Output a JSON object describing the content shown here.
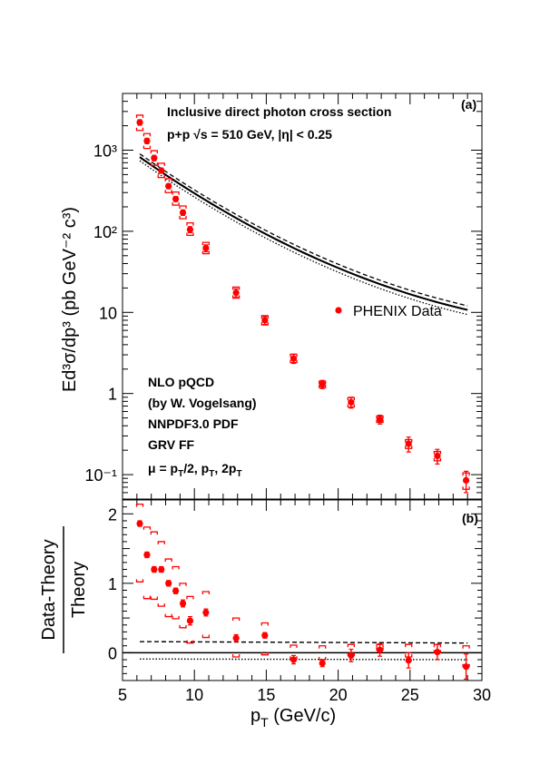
{
  "chart_data": [
    {
      "panel": "(a)",
      "type": "scatter",
      "yscale": "log",
      "xlim": [
        5,
        30
      ],
      "ylim": [
        0.05,
        5000
      ],
      "ylabel": "Ed³σ/dp³ (pb GeV⁻² c³)",
      "title": "Inclusive direct photon cross section",
      "subtitle": "p+p  √s = 510 GeV, |η| < 0.25",
      "legend": "PHENIX Data",
      "legend_position": "center-right",
      "theory_text": [
        "NLO pQCD",
        "(by W. Vogelsang)",
        "NNPDF3.0 PDF",
        "GRV FF",
        "μ = pT/2, pT, 2pT"
      ],
      "series": [
        {
          "name": "PHENIX Data",
          "marker": "circle",
          "color": "#ff0000",
          "x": [
            6.2,
            6.7,
            7.2,
            7.7,
            8.2,
            8.7,
            9.2,
            9.7,
            10.8,
            12.9,
            14.9,
            16.9,
            18.9,
            20.9,
            22.9,
            24.9,
            26.9,
            28.9
          ],
          "y": [
            2200,
            1300,
            800,
            560,
            360,
            250,
            170,
            105,
            62,
            17.5,
            8.0,
            2.7,
            1.3,
            0.78,
            0.48,
            0.24,
            0.17,
            0.085
          ],
          "yerr_low": [
            2030,
            1200,
            740,
            520,
            335,
            232,
            157,
            96,
            56,
            15.5,
            7.1,
            2.35,
            1.15,
            0.66,
            0.42,
            0.19,
            0.135,
            0.06
          ],
          "yerr_high": [
            2370,
            1400,
            860,
            600,
            385,
            268,
            183,
            114,
            68,
            19.5,
            8.9,
            3.05,
            1.45,
            0.9,
            0.54,
            0.29,
            0.205,
            0.11
          ],
          "sys_low": [
            1750,
            1050,
            650,
            460,
            300,
            210,
            143,
            89,
            53,
            15,
            7.0,
            2.4,
            1.18,
            0.68,
            0.44,
            0.21,
            0.148,
            0.066
          ],
          "sys_high": [
            2700,
            1600,
            985,
            690,
            445,
            305,
            205,
            127,
            73,
            20.5,
            9.1,
            3.05,
            1.42,
            0.89,
            0.53,
            0.27,
            0.193,
            0.105
          ]
        }
      ],
      "theory_curves": [
        {
          "style": "solid",
          "scale": "pT",
          "x": [
            6.2,
            29
          ],
          "y0": 830,
          "slope": -0.286
        },
        {
          "style": "dashed",
          "scale": "pT/2",
          "x": [
            6.2,
            29
          ],
          "y0": 900,
          "slope": -0.2849
        },
        {
          "style": "dotted",
          "scale": "2pT",
          "x": [
            6.2,
            29
          ],
          "y0": 740,
          "slope": -0.2872
        },
        {
          "style": "solid",
          "scale": "pT",
          "x": [
            6.2,
            29
          ],
          "y0": 810,
          "slope": -0.2858
        }
      ]
    },
    {
      "panel": "(b)",
      "type": "scatter",
      "xlim": [
        5,
        30
      ],
      "ylim": [
        -0.4,
        2.2
      ],
      "xlabel": "pT (GeV/c)",
      "ylabel_num": "Data-Theory",
      "ylabel_den": "Theory",
      "xticks": [
        5,
        10,
        15,
        20,
        25,
        30
      ],
      "yticks": [
        0,
        1,
        2
      ],
      "series": [
        {
          "name": "PHENIX Data",
          "marker": "circle",
          "color": "#ff0000",
          "x": [
            6.2,
            6.7,
            7.2,
            7.7,
            8.2,
            8.7,
            9.2,
            9.7,
            10.8,
            12.9,
            14.9,
            16.9,
            18.9,
            20.9,
            22.9,
            24.9,
            26.9,
            28.9
          ],
          "y": [
            1.86,
            1.41,
            1.2,
            1.2,
            1.0,
            0.89,
            0.71,
            0.46,
            0.58,
            0.21,
            0.25,
            -0.1,
            -0.15,
            -0.04,
            0.04,
            -0.11,
            0.01,
            -0.2
          ],
          "yerr_low": [
            1.82,
            1.37,
            1.16,
            1.16,
            0.96,
            0.85,
            0.66,
            0.4,
            0.53,
            0.16,
            0.21,
            -0.16,
            -0.2,
            -0.13,
            -0.05,
            -0.22,
            -0.1,
            -0.38
          ],
          "yerr_high": [
            1.9,
            1.45,
            1.24,
            1.24,
            1.04,
            0.93,
            0.76,
            0.52,
            0.63,
            0.26,
            0.29,
            -0.04,
            -0.1,
            0.05,
            0.13,
            0.0,
            0.12,
            -0.02
          ],
          "sys_low": [
            1.02,
            0.78,
            0.77,
            0.67,
            0.52,
            0.49,
            0.36,
            0.14,
            0.22,
            -0.06,
            -0.03,
            -0.09,
            -0.1,
            -0.04,
            0.04,
            -0.06,
            0.0,
            -0.2
          ],
          "sys_high": [
            2.14,
            1.81,
            1.74,
            1.6,
            1.35,
            1.24,
            1.0,
            0.81,
            0.88,
            0.5,
            0.43,
            0.11,
            0.1,
            0.12,
            0.12,
            0.12,
            0.12,
            0.1
          ]
        }
      ],
      "theory_curves": [
        {
          "style": "solid",
          "x": [
            5,
            30
          ],
          "y": [
            0,
            0
          ]
        },
        {
          "style": "dashed",
          "x": [
            6.2,
            29
          ],
          "y": [
            0.16,
            0.14
          ]
        },
        {
          "style": "dotted",
          "x": [
            6.2,
            29
          ],
          "y": [
            -0.09,
            -0.1
          ]
        }
      ]
    }
  ],
  "labels": {
    "top_title": "Inclusive direct photon cross section",
    "top_subtitle": "p+p  √s = 510 GeV, |η| < 0.25",
    "panel_a": "(a)",
    "panel_b": "(b)",
    "legend_label": "PHENIX Data",
    "nlo": "NLO pQCD",
    "by": "(by W. Vogelsang)",
    "pdf": "NNPDF3.0 PDF",
    "ff": "GRV FF",
    "ylabel_top": "Ed³σ/dp³ (pb GeV⁻² c³)",
    "ylabel_bottom_num": "Data-Theory",
    "ylabel_bottom_den": "Theory",
    "xlabel": "pT (GeV/c)",
    "ytick_top": [
      "10⁻¹",
      "1",
      "10",
      "10²",
      "10³"
    ],
    "ytick_bottom": [
      "0",
      "1",
      "2"
    ],
    "xtick": [
      "5",
      "10",
      "15",
      "20",
      "25",
      "30"
    ]
  },
  "colors": {
    "data": "#ff0000",
    "axis": "#000000",
    "theory": "#000000"
  }
}
